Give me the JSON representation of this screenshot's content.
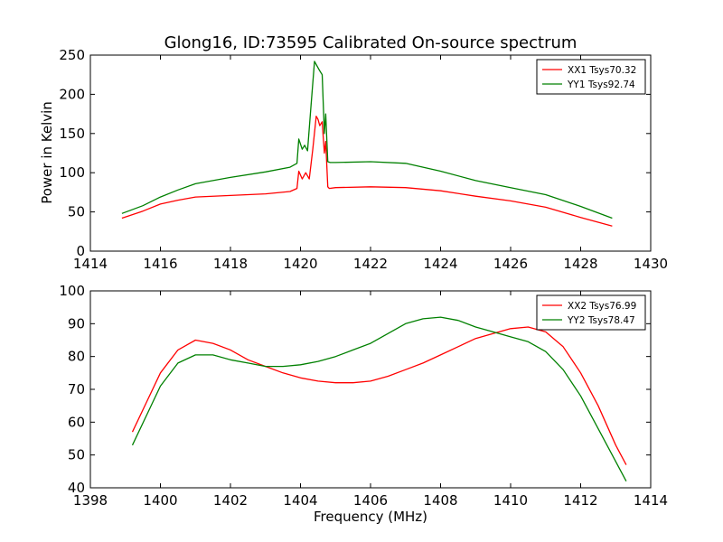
{
  "figure": {
    "title": "Glong16, ID:73595 Calibrated On-source spectrum",
    "ylabel": "Power in Kelvin",
    "xlabel": "Frequency (MHz)"
  },
  "chart_data": [
    {
      "type": "line",
      "xlim": [
        1414,
        1430
      ],
      "ylim": [
        0,
        250
      ],
      "xticks": [
        1414,
        1416,
        1418,
        1420,
        1422,
        1424,
        1426,
        1428,
        1430
      ],
      "yticks": [
        0,
        50,
        100,
        150,
        200,
        250
      ],
      "legend_position": "top-right",
      "series": [
        {
          "name": "XX1 Tsys70.32",
          "color": "#ff0000",
          "x": [
            1414.9,
            1415.5,
            1416.0,
            1416.5,
            1417.0,
            1418.0,
            1419.0,
            1419.7,
            1419.9,
            1419.95,
            1420.05,
            1420.15,
            1420.25,
            1420.35,
            1420.45,
            1420.5,
            1420.55,
            1420.62,
            1420.68,
            1420.72,
            1420.78,
            1420.82,
            1421.0,
            1422.0,
            1423.0,
            1424.0,
            1425.0,
            1426.0,
            1427.0,
            1428.0,
            1428.9
          ],
          "y": [
            42,
            51,
            60,
            65,
            69,
            71,
            73,
            76,
            80,
            102,
            92,
            100,
            92,
            130,
            172,
            168,
            160,
            165,
            125,
            140,
            82,
            80,
            81,
            82,
            81,
            77,
            70,
            64,
            56,
            43,
            32
          ]
        },
        {
          "name": "YY1 Tsys92.74",
          "color": "#008000",
          "x": [
            1414.9,
            1415.5,
            1416.0,
            1416.5,
            1417.0,
            1418.0,
            1419.0,
            1419.7,
            1419.9,
            1419.95,
            1420.05,
            1420.12,
            1420.2,
            1420.3,
            1420.4,
            1420.45,
            1420.55,
            1420.62,
            1420.68,
            1420.72,
            1420.78,
            1420.85,
            1421.0,
            1422.0,
            1423.0,
            1424.0,
            1425.0,
            1426.0,
            1427.0,
            1428.0,
            1428.9
          ],
          "y": [
            48,
            58,
            69,
            78,
            86,
            94,
            101,
            107,
            112,
            143,
            130,
            135,
            128,
            185,
            242,
            238,
            230,
            225,
            150,
            175,
            114,
            113,
            113,
            114,
            112,
            102,
            90,
            81,
            72,
            57,
            42
          ]
        }
      ]
    },
    {
      "type": "line",
      "xlim": [
        1398,
        1414
      ],
      "ylim": [
        40,
        100
      ],
      "xticks": [
        1398,
        1400,
        1402,
        1404,
        1406,
        1408,
        1410,
        1412,
        1414
      ],
      "yticks": [
        40,
        50,
        60,
        70,
        80,
        90,
        100
      ],
      "legend_position": "top-right",
      "series": [
        {
          "name": "XX2 Tsys76.99",
          "color": "#ff0000",
          "x": [
            1399.2,
            1399.6,
            1400.0,
            1400.5,
            1401.0,
            1401.5,
            1402.0,
            1402.5,
            1403.0,
            1403.5,
            1404.0,
            1404.5,
            1405.0,
            1405.5,
            1406.0,
            1406.5,
            1407.0,
            1407.5,
            1408.0,
            1408.5,
            1409.0,
            1409.5,
            1410.0,
            1410.5,
            1411.0,
            1411.5,
            1412.0,
            1412.5,
            1413.0,
            1413.3
          ],
          "y": [
            57,
            66,
            75,
            82,
            85,
            84,
            82,
            79,
            77,
            75,
            73.5,
            72.5,
            72,
            72,
            72.5,
            74,
            76,
            78,
            80.5,
            83,
            85.5,
            87,
            88.5,
            89,
            87.5,
            83,
            75,
            65,
            53,
            47
          ]
        },
        {
          "name": "YY2 Tsys78.47",
          "color": "#008000",
          "x": [
            1399.2,
            1399.6,
            1400.0,
            1400.5,
            1401.0,
            1401.5,
            1402.0,
            1402.5,
            1403.0,
            1403.5,
            1404.0,
            1404.5,
            1405.0,
            1405.5,
            1406.0,
            1406.5,
            1407.0,
            1407.5,
            1408.0,
            1408.5,
            1409.0,
            1409.5,
            1410.0,
            1410.5,
            1411.0,
            1411.5,
            1412.0,
            1412.5,
            1413.0,
            1413.3
          ],
          "y": [
            53,
            62,
            71,
            78,
            80.5,
            80.5,
            79,
            78,
            77,
            77,
            77.5,
            78.5,
            80,
            82,
            84,
            87,
            90,
            91.5,
            92,
            91,
            89,
            87.5,
            86,
            84.5,
            81.5,
            76,
            68,
            58,
            48,
            42
          ]
        }
      ]
    }
  ]
}
